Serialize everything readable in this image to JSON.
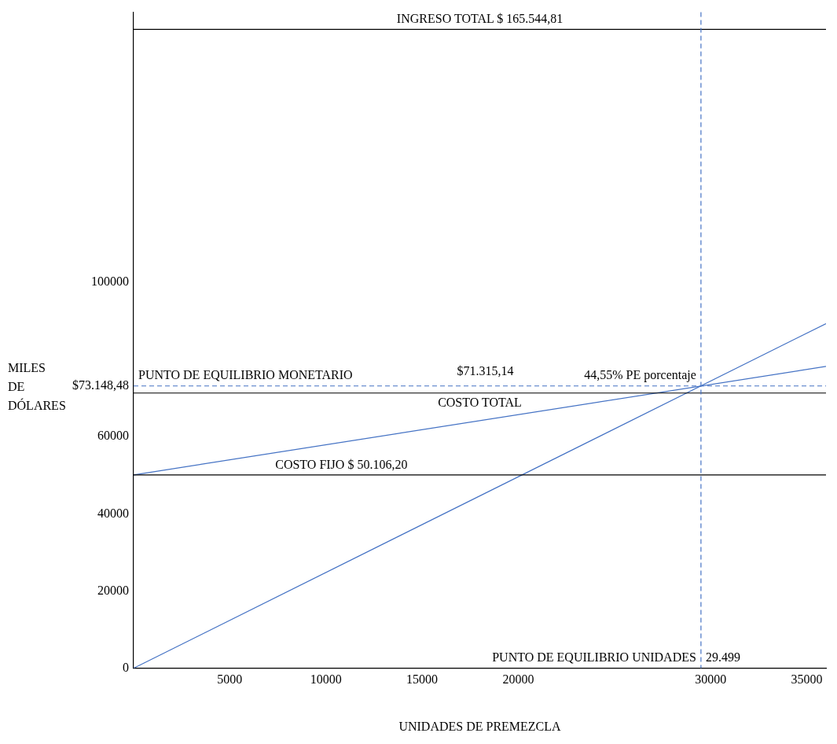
{
  "chart_data": {
    "type": "line",
    "xlabel": "UNIDADES DE PREMEZCLA",
    "ylabel": "MILES DE DÓLARES",
    "xlim": [
      0,
      36000
    ],
    "xticks": [
      5000,
      10000,
      15000,
      20000,
      30000,
      35000
    ],
    "ylim": [
      0,
      170000
    ],
    "yticks": [
      0,
      20000,
      40000,
      60000,
      100000
    ],
    "marker": "none",
    "x": [
      0,
      36000
    ],
    "series": [
      {
        "values": [
          0,
          89300
        ],
        "color": "#4472c4"
      },
      {
        "values": [
          50100,
          78200
        ],
        "color": "#4472c4"
      }
    ],
    "ref_lines": [
      {
        "axis": "y",
        "value": 165544.81,
        "label": "INGRESO TOTAL $ 165.544,81",
        "color": "#000000"
      },
      {
        "axis": "y",
        "value": 71315.14,
        "label": "COSTO TOTAL",
        "color": "#000000"
      },
      {
        "axis": "y",
        "value": 50106.2,
        "label": "COSTO FIJO $ 50.106,20",
        "color": "#000000"
      },
      {
        "axis": "y",
        "value": 73148.48,
        "label": "$73.148,48",
        "color": "#4472c4",
        "line_style": "dashed"
      },
      {
        "axis": "x",
        "value": 29499,
        "label": "29.499",
        "color": "#4472c4",
        "line_style": "dashed"
      }
    ],
    "annotations": [
      {
        "text": "PUNTO DE EQUILIBRIO MONETARIO",
        "x": 0,
        "y": 73148.48
      },
      {
        "text": "$71.315,14",
        "x": 20000,
        "y": 71315.14
      },
      {
        "text": "44,55% PE porcentaje",
        "x": 29499,
        "y": 73148.48
      },
      {
        "text": "PUNTO DE EQUILIBRIO UNIDADES",
        "x": 29499,
        "y": 0
      }
    ]
  }
}
